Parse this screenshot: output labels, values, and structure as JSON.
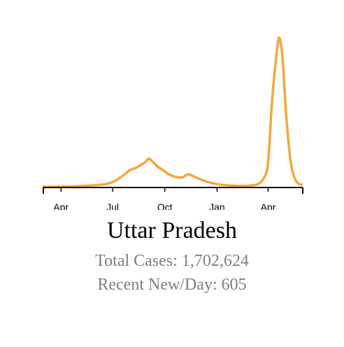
{
  "region": "Uttar Pradesh",
  "stats": {
    "total_label": "Total Cases: ",
    "total_value": "1,702,624",
    "recent_label": "Recent New/Day: ",
    "recent_value": "605"
  },
  "colors": {
    "line": "#f3a73b",
    "axis": "#000000",
    "stats_text": "#7f7f7f"
  },
  "chart_data": {
    "type": "line",
    "title": "",
    "xlabel": "",
    "ylabel": "",
    "x_tick_labels": [
      "Apr",
      "Jul",
      "Oct",
      "Jan",
      "Apr"
    ],
    "x_tick_dates": [
      "2020-04-01",
      "2020-07-01",
      "2020-10-01",
      "2021-01-01",
      "2021-04-01"
    ],
    "x_range": [
      "2020-03-01",
      "2021-06-01"
    ],
    "y_range": [
      0,
      37000
    ],
    "grid": false,
    "series": [
      {
        "x": [
          "2020-03-01",
          "2020-04-01",
          "2020-05-01",
          "2020-06-01",
          "2020-06-20",
          "2020-07-05",
          "2020-07-15",
          "2020-07-25",
          "2020-08-01",
          "2020-08-10",
          "2020-08-20",
          "2020-08-28",
          "2020-09-03",
          "2020-09-10",
          "2020-09-18",
          "2020-09-28",
          "2020-10-08",
          "2020-10-20",
          "2020-11-01",
          "2020-11-10",
          "2020-11-18",
          "2020-11-28",
          "2020-12-08",
          "2020-12-20",
          "2021-01-01",
          "2021-01-15",
          "2021-02-01",
          "2021-02-15",
          "2021-03-01",
          "2021-03-15",
          "2021-03-25",
          "2021-04-01",
          "2021-04-08",
          "2021-04-15",
          "2021-04-20",
          "2021-04-25",
          "2021-04-28",
          "2021-05-01",
          "2021-05-06",
          "2021-05-12",
          "2021-05-18",
          "2021-05-24",
          "2021-05-30"
        ],
        "y": [
          0,
          50,
          150,
          400,
          700,
          1400,
          2300,
          3300,
          4100,
          4500,
          5300,
          6000,
          6800,
          6000,
          4900,
          4000,
          3000,
          2400,
          2300,
          3000,
          2700,
          2100,
          1500,
          1000,
          650,
          400,
          250,
          200,
          300,
          700,
          2200,
          6000,
          21000,
          31000,
          36000,
          33000,
          28000,
          21000,
          12000,
          5000,
          2000,
          800,
          500
        ]
      }
    ]
  }
}
